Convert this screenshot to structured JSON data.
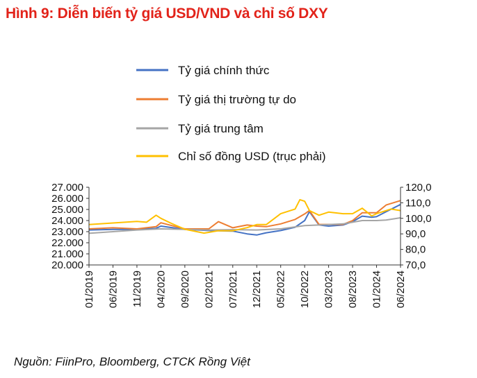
{
  "title": "Hình 9: Diễn biến tỷ giá USD/VND và chỉ số DXY",
  "source": "Nguồn: FiinPro, Bloomberg, CTCK Rồng Việt",
  "chart_data": {
    "type": "line",
    "x_labels": [
      "01/2019",
      "06/2019",
      "11/2019",
      "04/2020",
      "09/2020",
      "02/2021",
      "07/2021",
      "12/2021",
      "05/2022",
      "10/2022",
      "03/2023",
      "08/2023",
      "01/2024",
      "06/2024"
    ],
    "x_range": [
      "2019-01",
      "2024-06"
    ],
    "y_left": {
      "ticks": [
        "20.000",
        "21.000",
        "22.000",
        "23.000",
        "24.000",
        "25.000",
        "26.000",
        "27.000"
      ],
      "range": [
        20000,
        27000
      ]
    },
    "y_right": {
      "ticks": [
        "70,0",
        "80,0",
        "90,0",
        "100,0",
        "110,0",
        "120,0"
      ],
      "range": [
        70,
        120
      ]
    },
    "legend_position": "top",
    "grid": false,
    "series": [
      {
        "name": "Tỷ giá chính thức",
        "axis": "left",
        "color": "#4472c4",
        "x": [
          "2019-01",
          "2019-06",
          "2019-11",
          "2020-03",
          "2020-04",
          "2020-09",
          "2021-02",
          "2021-07",
          "2021-10",
          "2021-12",
          "2022-02",
          "2022-05",
          "2022-08",
          "2022-10",
          "2022-11",
          "2023-01",
          "2023-03",
          "2023-06",
          "2023-08",
          "2023-10",
          "2023-12",
          "2024-01",
          "2024-03",
          "2024-06"
        ],
        "values": [
          23150,
          23200,
          23200,
          23300,
          23500,
          23200,
          23100,
          23050,
          22800,
          22700,
          22900,
          23100,
          23400,
          24000,
          24800,
          23600,
          23500,
          23600,
          23900,
          24400,
          24300,
          24350,
          24800,
          25450
        ]
      },
      {
        "name": "Tỷ giá thị trường tự do",
        "axis": "left",
        "color": "#ed7d31",
        "x": [
          "2019-01",
          "2019-06",
          "2019-11",
          "2020-03",
          "2020-04",
          "2020-09",
          "2021-02",
          "2021-04",
          "2021-07",
          "2021-10",
          "2021-12",
          "2022-02",
          "2022-05",
          "2022-08",
          "2022-10",
          "2022-11",
          "2023-01",
          "2023-03",
          "2023-06",
          "2023-08",
          "2023-10",
          "2023-12",
          "2024-01",
          "2024-03",
          "2024-06"
        ],
        "values": [
          23250,
          23350,
          23250,
          23450,
          23800,
          23250,
          23250,
          23900,
          23350,
          23600,
          23500,
          23450,
          23700,
          24100,
          24600,
          24900,
          23650,
          23650,
          23650,
          24000,
          24700,
          24700,
          24700,
          25400,
          25800
        ]
      },
      {
        "name": "Tỷ giá trung tâm",
        "axis": "left",
        "color": "#a5a5a5",
        "x": [
          "2019-01",
          "2019-06",
          "2019-11",
          "2020-04",
          "2020-09",
          "2021-02",
          "2021-07",
          "2021-12",
          "2022-05",
          "2022-10",
          "2023-01",
          "2023-06",
          "2023-10",
          "2024-01",
          "2024-03",
          "2024-06"
        ],
        "values": [
          22850,
          23000,
          23150,
          23250,
          23200,
          23150,
          23180,
          23150,
          23250,
          23550,
          23600,
          23700,
          24000,
          24000,
          24050,
          24250
        ]
      },
      {
        "name": "Chỉ số đồng USD (trục phải)",
        "axis": "right",
        "color": "#ffc000",
        "x": [
          "2019-01",
          "2019-06",
          "2019-11",
          "2020-01",
          "2020-03",
          "2020-04",
          "2020-06",
          "2020-09",
          "2021-01",
          "2021-02",
          "2021-04",
          "2021-07",
          "2021-10",
          "2021-12",
          "2022-02",
          "2022-05",
          "2022-08",
          "2022-09",
          "2022-10",
          "2022-11",
          "2023-01",
          "2023-03",
          "2023-06",
          "2023-08",
          "2023-10",
          "2023-12",
          "2024-01",
          "2024-04",
          "2024-06"
        ],
        "values": [
          96,
          97,
          98,
          97.5,
          102,
          100,
          97,
          93,
          90.5,
          91,
          92,
          92,
          94,
          96,
          96,
          103,
          106,
          112,
          111,
          105,
          102,
          104,
          103,
          103,
          106.5,
          101.5,
          103,
          106,
          105
        ]
      }
    ]
  }
}
